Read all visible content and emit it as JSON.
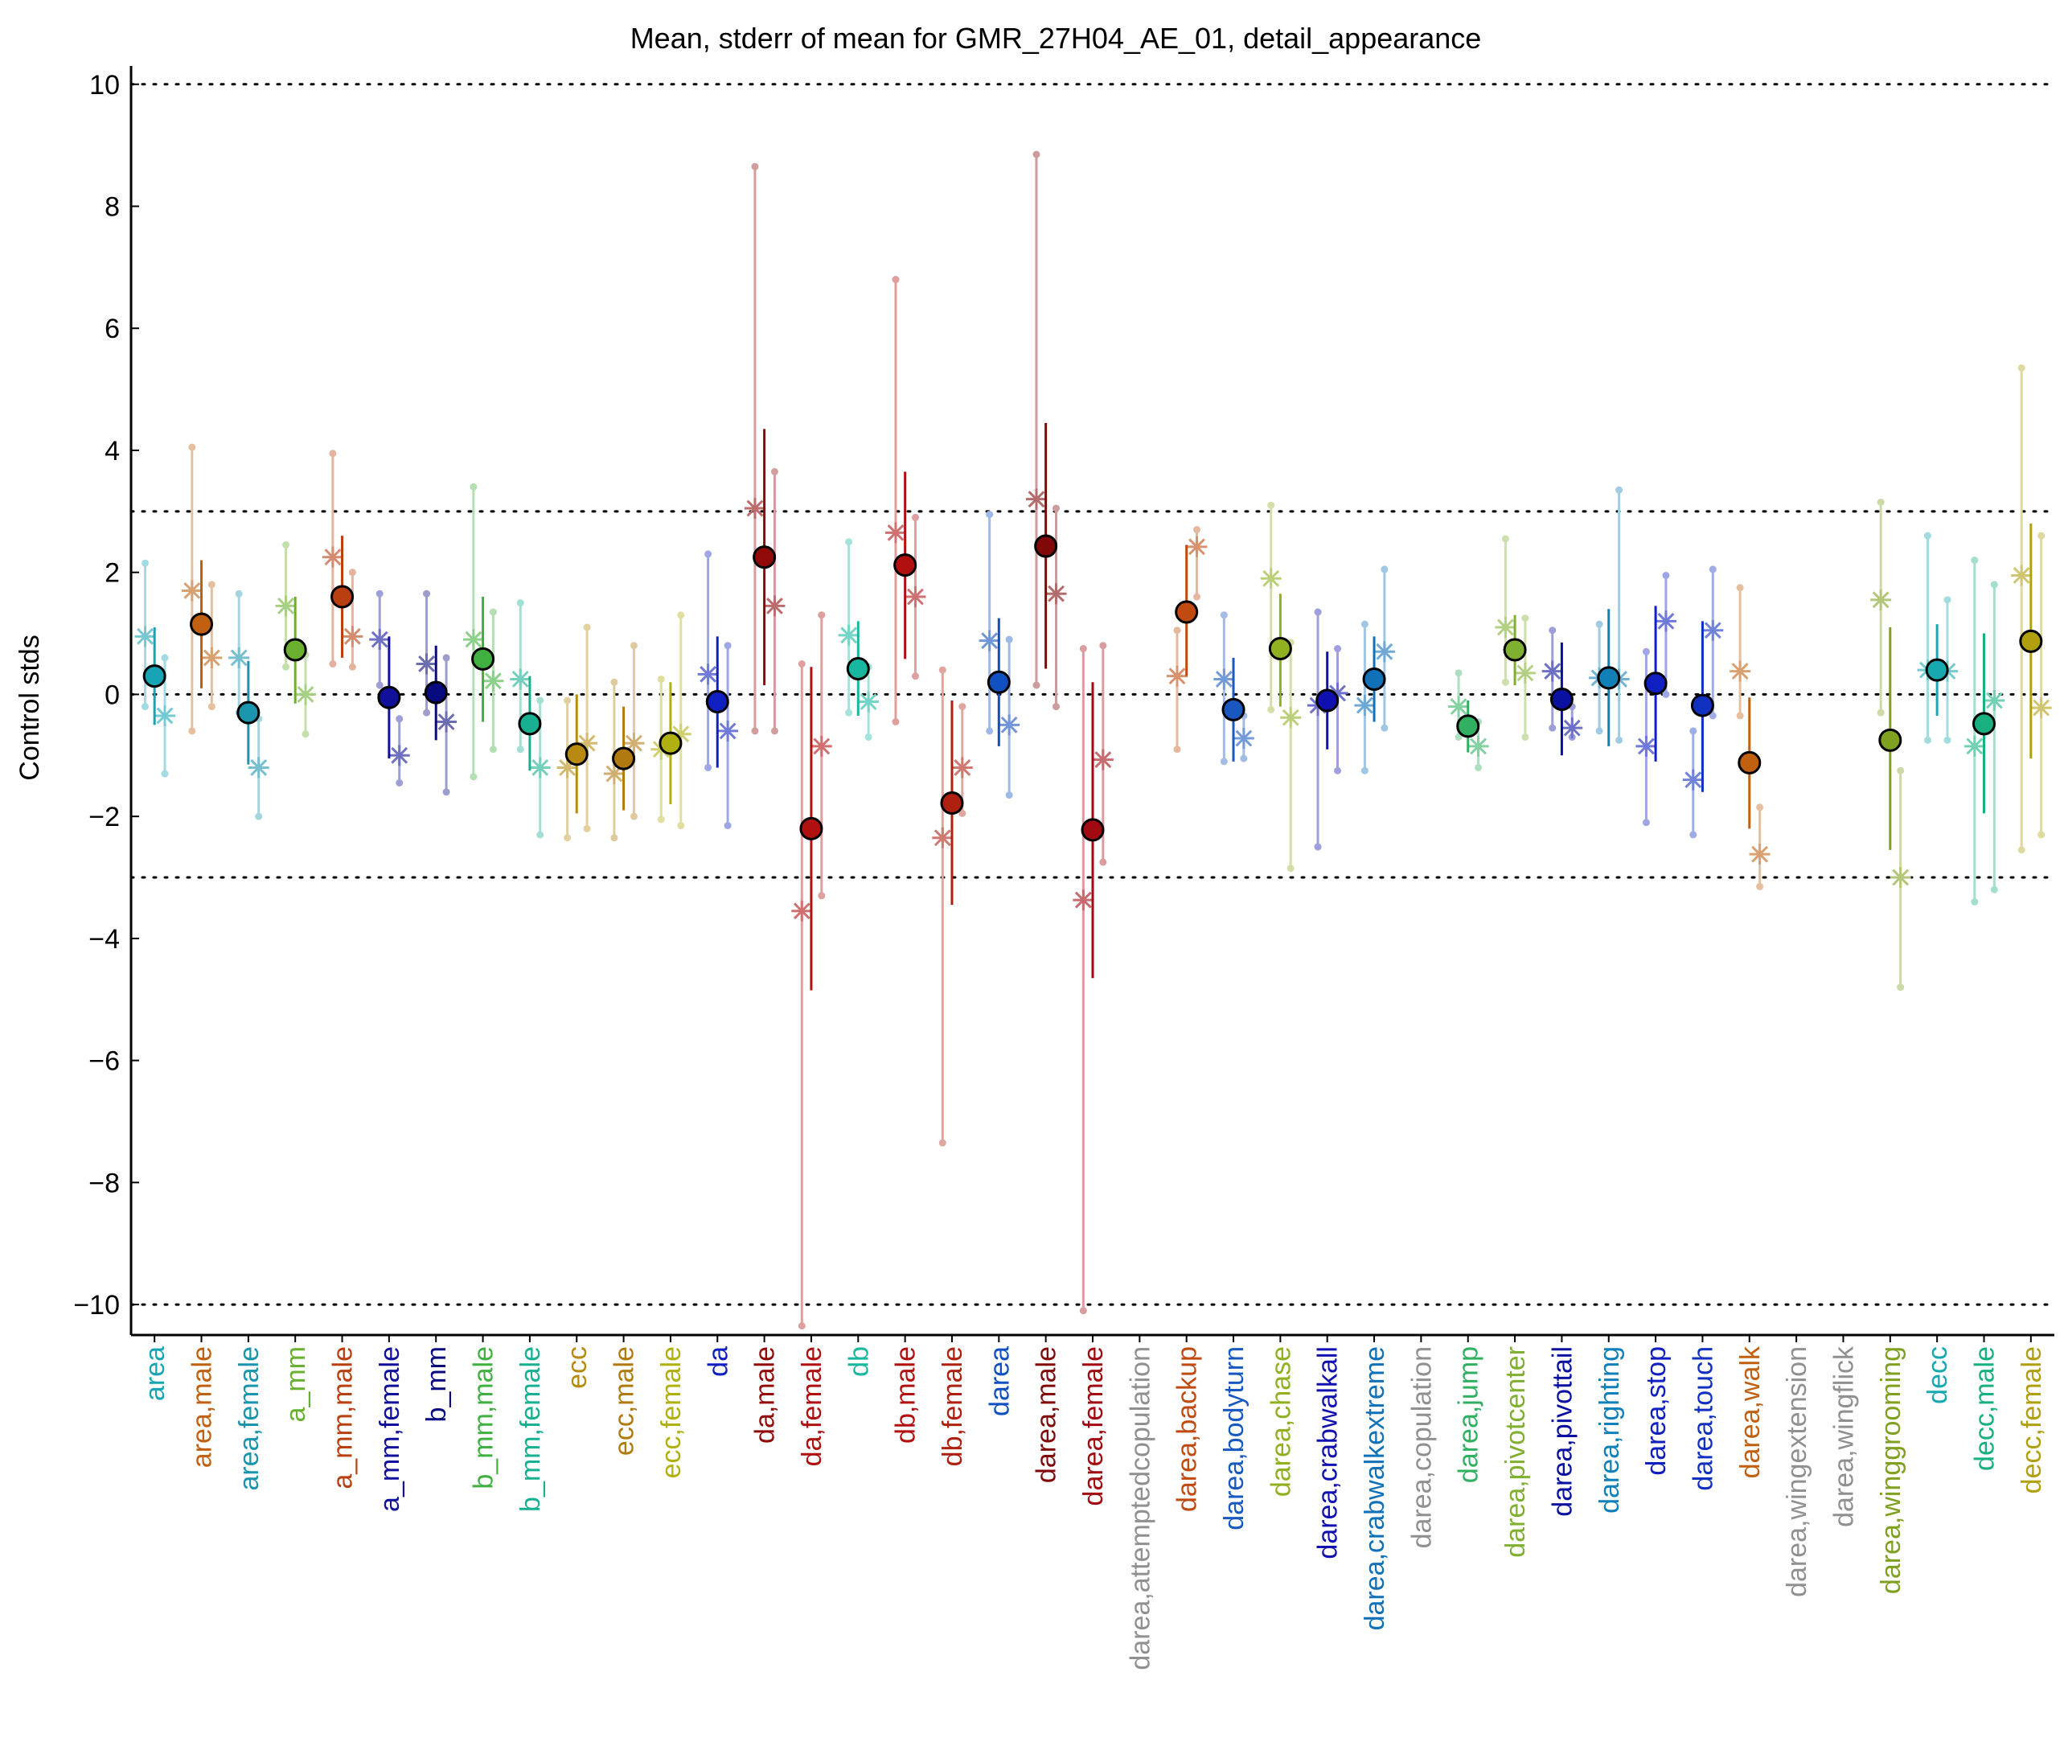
{
  "chart_data": {
    "type": "scatter",
    "title": "Mean, stderr of mean for GMR_27H04_AE_01, detail_appearance",
    "ylabel": "Control stds",
    "xlabel": "",
    "ylim": [
      -10.5,
      10.3
    ],
    "yticks": [
      10,
      8,
      6,
      4,
      2,
      0,
      -2,
      -4,
      -6,
      -8,
      -10
    ],
    "ytick_labels": [
      "10",
      "8",
      "6",
      "4",
      "2",
      "0",
      "−2",
      "−4",
      "−6",
      "−8",
      "−10"
    ],
    "reference_lines": [
      10,
      3,
      0,
      -3,
      -10
    ],
    "reference_line_style": "dotted",
    "grid": false,
    "categories": [
      {
        "label": "area",
        "color": "#17a5b5",
        "mean": 0.3,
        "lo": -0.5,
        "hi": 1.1,
        "subs": [
          {
            "x": -0.2,
            "y": 0.95,
            "lo": -0.2,
            "hi": 2.15
          },
          {
            "x": 0.22,
            "y": -0.35,
            "lo": -1.3,
            "hi": 0.6
          }
        ]
      },
      {
        "label": "area,male",
        "color": "#c06010",
        "mean": 1.15,
        "lo": 0.1,
        "hi": 2.2,
        "subs": [
          {
            "x": -0.2,
            "y": 1.7,
            "lo": -0.6,
            "hi": 4.05
          },
          {
            "x": 0.22,
            "y": 0.6,
            "lo": -0.2,
            "hi": 1.8
          }
        ]
      },
      {
        "label": "area,female",
        "color": "#1a95ad",
        "mean": -0.3,
        "lo": -1.15,
        "hi": 0.55,
        "subs": [
          {
            "x": -0.2,
            "y": 0.6,
            "lo": -0.3,
            "hi": 1.65
          },
          {
            "x": 0.22,
            "y": -1.2,
            "lo": -2.0,
            "hi": -0.4
          }
        ]
      },
      {
        "label": "a_mm",
        "color": "#6ab030",
        "mean": 0.73,
        "lo": -0.15,
        "hi": 1.6,
        "subs": [
          {
            "x": -0.2,
            "y": 1.45,
            "lo": 0.45,
            "hi": 2.45
          },
          {
            "x": 0.22,
            "y": 0.0,
            "lo": -0.65,
            "hi": 0.65
          }
        ]
      },
      {
        "label": "a_mm,male",
        "color": "#b84010",
        "mean": 1.6,
        "lo": 0.6,
        "hi": 2.6,
        "subs": [
          {
            "x": -0.2,
            "y": 2.25,
            "lo": 0.5,
            "hi": 3.95
          },
          {
            "x": 0.22,
            "y": 0.95,
            "lo": 0.45,
            "hi": 2.0
          }
        ]
      },
      {
        "label": "a_mm,female",
        "color": "#10109a",
        "mean": -0.05,
        "lo": -1.05,
        "hi": 0.95,
        "subs": [
          {
            "x": -0.2,
            "y": 0.9,
            "lo": 0.15,
            "hi": 1.65
          },
          {
            "x": 0.22,
            "y": -1.0,
            "lo": -1.45,
            "hi": -0.4
          }
        ]
      },
      {
        "label": "b_mm",
        "color": "#0a0a80",
        "mean": 0.03,
        "lo": -0.75,
        "hi": 0.8,
        "subs": [
          {
            "x": -0.2,
            "y": 0.5,
            "lo": -0.3,
            "hi": 1.65
          },
          {
            "x": 0.22,
            "y": -0.45,
            "lo": -1.6,
            "hi": 0.6
          }
        ]
      },
      {
        "label": "b_mm,male",
        "color": "#40b040",
        "mean": 0.58,
        "lo": -0.45,
        "hi": 1.6,
        "subs": [
          {
            "x": -0.2,
            "y": 0.9,
            "lo": -1.35,
            "hi": 3.4
          },
          {
            "x": 0.22,
            "y": 0.22,
            "lo": -0.9,
            "hi": 1.35
          }
        ]
      },
      {
        "label": "b_mm,female",
        "color": "#18b090",
        "mean": -0.48,
        "lo": -1.25,
        "hi": 0.3,
        "subs": [
          {
            "x": -0.2,
            "y": 0.25,
            "lo": -0.9,
            "hi": 1.5
          },
          {
            "x": 0.22,
            "y": -1.2,
            "lo": -2.3,
            "hi": -0.1
          }
        ]
      },
      {
        "label": "ecc",
        "color": "#b88a10",
        "mean": -0.98,
        "lo": -1.95,
        "hi": 0.0,
        "subs": [
          {
            "x": -0.2,
            "y": -1.2,
            "lo": -2.35,
            "hi": -0.1
          },
          {
            "x": 0.22,
            "y": -0.8,
            "lo": -2.2,
            "hi": 1.1
          }
        ]
      },
      {
        "label": "ecc,male",
        "color": "#b07a10",
        "mean": -1.05,
        "lo": -1.9,
        "hi": -0.2,
        "subs": [
          {
            "x": -0.2,
            "y": -1.3,
            "lo": -2.35,
            "hi": 0.2
          },
          {
            "x": 0.22,
            "y": -0.8,
            "lo": -2.0,
            "hi": 0.8
          }
        ]
      },
      {
        "label": "ecc,female",
        "color": "#b0b010",
        "mean": -0.8,
        "lo": -1.8,
        "hi": 0.2,
        "subs": [
          {
            "x": -0.2,
            "y": -0.9,
            "lo": -2.05,
            "hi": 0.25
          },
          {
            "x": 0.22,
            "y": -0.65,
            "lo": -2.15,
            "hi": 1.3
          }
        ]
      },
      {
        "label": "da",
        "color": "#1020c0",
        "mean": -0.12,
        "lo": -1.2,
        "hi": 0.95,
        "subs": [
          {
            "x": -0.2,
            "y": 0.33,
            "lo": -1.2,
            "hi": 2.3
          },
          {
            "x": 0.22,
            "y": -0.6,
            "lo": -2.15,
            "hi": 0.8
          }
        ]
      },
      {
        "label": "da,male",
        "color": "#900a0a",
        "mean": 2.25,
        "lo": 0.15,
        "hi": 4.35,
        "subs": [
          {
            "x": -0.2,
            "y": 3.05,
            "lo": -0.6,
            "hi": 8.65
          },
          {
            "x": 0.22,
            "y": 1.45,
            "lo": -0.6,
            "hi": 3.65
          }
        ]
      },
      {
        "label": "da,female",
        "color": "#b01010",
        "mean": -2.2,
        "lo": -4.85,
        "hi": 0.45,
        "subs": [
          {
            "x": -0.2,
            "y": -3.55,
            "lo": -10.35,
            "hi": 0.5
          },
          {
            "x": 0.22,
            "y": -0.85,
            "lo": -3.3,
            "hi": 1.3
          }
        ]
      },
      {
        "label": "db",
        "color": "#18b8a0",
        "mean": 0.42,
        "lo": -0.35,
        "hi": 1.2,
        "subs": [
          {
            "x": -0.2,
            "y": 0.97,
            "lo": -0.3,
            "hi": 2.5
          },
          {
            "x": 0.22,
            "y": -0.12,
            "lo": -0.7,
            "hi": 0.45
          }
        ]
      },
      {
        "label": "db,male",
        "color": "#b01010",
        "mean": 2.12,
        "lo": 0.58,
        "hi": 3.65,
        "subs": [
          {
            "x": -0.2,
            "y": 2.65,
            "lo": -0.45,
            "hi": 6.8
          },
          {
            "x": 0.22,
            "y": 1.6,
            "lo": 0.3,
            "hi": 2.9
          }
        ]
      },
      {
        "label": "db,female",
        "color": "#b02010",
        "mean": -1.78,
        "lo": -3.45,
        "hi": -0.1,
        "subs": [
          {
            "x": -0.2,
            "y": -2.35,
            "lo": -7.35,
            "hi": 0.4
          },
          {
            "x": 0.22,
            "y": -1.2,
            "lo": -1.95,
            "hi": -0.2
          }
        ]
      },
      {
        "label": "darea",
        "color": "#1050c0",
        "mean": 0.2,
        "lo": -0.85,
        "hi": 1.25,
        "subs": [
          {
            "x": -0.2,
            "y": 0.88,
            "lo": -0.6,
            "hi": 2.95
          },
          {
            "x": 0.22,
            "y": -0.5,
            "lo": -1.65,
            "hi": 0.9
          }
        ]
      },
      {
        "label": "darea,male",
        "color": "#800808",
        "mean": 2.43,
        "lo": 0.42,
        "hi": 4.45,
        "subs": [
          {
            "x": -0.2,
            "y": 3.2,
            "lo": 0.15,
            "hi": 8.85
          },
          {
            "x": 0.22,
            "y": 1.65,
            "lo": -0.2,
            "hi": 3.05
          }
        ]
      },
      {
        "label": "darea,female",
        "color": "#a00a10",
        "mean": -2.22,
        "lo": -4.65,
        "hi": 0.2,
        "subs": [
          {
            "x": -0.2,
            "y": -3.37,
            "lo": -10.1,
            "hi": 0.75
          },
          {
            "x": 0.22,
            "y": -1.07,
            "lo": -2.75,
            "hi": 0.8
          }
        ]
      },
      {
        "label": "darea,attemptedcopulation",
        "color": "#909090"
      },
      {
        "label": "darea,backup",
        "color": "#c04a10",
        "mean": 1.35,
        "lo": 0.3,
        "hi": 2.45,
        "subs": [
          {
            "x": -0.2,
            "y": 0.3,
            "lo": -0.9,
            "hi": 1.05
          },
          {
            "x": 0.22,
            "y": 2.42,
            "lo": 1.6,
            "hi": 2.7
          }
        ]
      },
      {
        "label": "darea,bodyturn",
        "color": "#1858c0",
        "mean": -0.25,
        "lo": -1.1,
        "hi": 0.6,
        "subs": [
          {
            "x": -0.2,
            "y": 0.25,
            "lo": -1.1,
            "hi": 1.3
          },
          {
            "x": 0.22,
            "y": -0.72,
            "lo": -1.05,
            "hi": -0.35
          }
        ]
      },
      {
        "label": "darea,chase",
        "color": "#90b020",
        "mean": 0.75,
        "lo": -0.2,
        "hi": 1.65,
        "subs": [
          {
            "x": -0.2,
            "y": 1.9,
            "lo": -0.25,
            "hi": 3.1
          },
          {
            "x": 0.22,
            "y": -0.38,
            "lo": -2.85,
            "hi": 0.85
          }
        ]
      },
      {
        "label": "darea,crabwalkall",
        "color": "#1010b0",
        "mean": -0.1,
        "lo": -0.9,
        "hi": 0.7,
        "subs": [
          {
            "x": -0.2,
            "y": -0.18,
            "lo": -2.5,
            "hi": 1.35
          },
          {
            "x": 0.22,
            "y": 0.02,
            "lo": -1.25,
            "hi": 0.75
          }
        ]
      },
      {
        "label": "darea,crabwalkextreme",
        "color": "#1070b8",
        "mean": 0.25,
        "lo": -0.45,
        "hi": 0.95,
        "subs": [
          {
            "x": -0.2,
            "y": -0.18,
            "lo": -1.25,
            "hi": 1.15
          },
          {
            "x": 0.22,
            "y": 0.7,
            "lo": -0.55,
            "hi": 2.05
          }
        ]
      },
      {
        "label": "darea,copulation",
        "color": "#909090"
      },
      {
        "label": "darea,jump",
        "color": "#30b060",
        "mean": -0.52,
        "lo": -0.95,
        "hi": -0.1,
        "subs": [
          {
            "x": -0.2,
            "y": -0.2,
            "lo": -0.7,
            "hi": 0.35
          },
          {
            "x": 0.22,
            "y": -0.85,
            "lo": -1.2,
            "hi": -0.45
          }
        ]
      },
      {
        "label": "darea,pivotcenter",
        "color": "#80b030",
        "mean": 0.73,
        "lo": 0.15,
        "hi": 1.3,
        "subs": [
          {
            "x": -0.2,
            "y": 1.1,
            "lo": 0.2,
            "hi": 2.55
          },
          {
            "x": 0.22,
            "y": 0.35,
            "lo": -0.7,
            "hi": 1.25
          }
        ]
      },
      {
        "label": "darea,pivottail",
        "color": "#0a10a0",
        "mean": -0.08,
        "lo": -1.0,
        "hi": 0.85,
        "subs": [
          {
            "x": -0.2,
            "y": 0.38,
            "lo": -0.55,
            "hi": 1.05
          },
          {
            "x": 0.22,
            "y": -0.55,
            "lo": -0.7,
            "hi": -0.2
          }
        ]
      },
      {
        "label": "darea,righting",
        "color": "#1080b8",
        "mean": 0.27,
        "lo": -0.85,
        "hi": 1.4,
        "subs": [
          {
            "x": -0.2,
            "y": 0.27,
            "lo": -0.6,
            "hi": 1.15
          },
          {
            "x": 0.22,
            "y": 0.25,
            "lo": -0.75,
            "hi": 3.35
          }
        ]
      },
      {
        "label": "darea,stop",
        "color": "#1020c0",
        "mean": 0.18,
        "lo": -1.1,
        "hi": 1.45,
        "subs": [
          {
            "x": -0.2,
            "y": -0.85,
            "lo": -2.1,
            "hi": 0.7
          },
          {
            "x": 0.22,
            "y": 1.2,
            "lo": 0.0,
            "hi": 1.95
          }
        ]
      },
      {
        "label": "darea,touch",
        "color": "#1030c0",
        "mean": -0.18,
        "lo": -1.6,
        "hi": 1.2,
        "subs": [
          {
            "x": -0.2,
            "y": -1.4,
            "lo": -2.3,
            "hi": -0.6
          },
          {
            "x": 0.22,
            "y": 1.05,
            "lo": -0.35,
            "hi": 2.05
          }
        ]
      },
      {
        "label": "darea,walk",
        "color": "#c06010",
        "mean": -1.12,
        "lo": -2.2,
        "hi": -0.05,
        "subs": [
          {
            "x": -0.2,
            "y": 0.38,
            "lo": -0.35,
            "hi": 1.75
          },
          {
            "x": 0.22,
            "y": -2.62,
            "lo": -3.15,
            "hi": -1.85
          }
        ]
      },
      {
        "label": "darea,wingextension",
        "color": "#909090"
      },
      {
        "label": "darea,wingflick",
        "color": "#909090"
      },
      {
        "label": "darea,winggrooming",
        "color": "#80a020",
        "mean": -0.75,
        "lo": -2.55,
        "hi": 1.1,
        "subs": [
          {
            "x": -0.2,
            "y": 1.55,
            "lo": -0.3,
            "hi": 3.15
          },
          {
            "x": 0.22,
            "y": -3.0,
            "lo": -4.8,
            "hi": -1.25
          }
        ]
      },
      {
        "label": "decc",
        "color": "#18a8b0",
        "mean": 0.4,
        "lo": -0.35,
        "hi": 1.15,
        "subs": [
          {
            "x": -0.2,
            "y": 0.4,
            "lo": -0.75,
            "hi": 2.6
          },
          {
            "x": 0.22,
            "y": 0.38,
            "lo": -0.75,
            "hi": 1.55
          }
        ]
      },
      {
        "label": "decc,male",
        "color": "#18b080",
        "mean": -0.48,
        "lo": -1.95,
        "hi": 1.0,
        "subs": [
          {
            "x": -0.2,
            "y": -0.85,
            "lo": -3.4,
            "hi": 2.2
          },
          {
            "x": 0.22,
            "y": -0.1,
            "lo": -3.2,
            "hi": 1.8
          }
        ]
      },
      {
        "label": "decc,female",
        "color": "#b0a010",
        "mean": 0.87,
        "lo": -1.05,
        "hi": 2.8,
        "subs": [
          {
            "x": -0.2,
            "y": 1.95,
            "lo": -2.55,
            "hi": 5.35
          },
          {
            "x": 0.22,
            "y": -0.22,
            "lo": -2.3,
            "hi": 2.6
          }
        ]
      }
    ]
  }
}
